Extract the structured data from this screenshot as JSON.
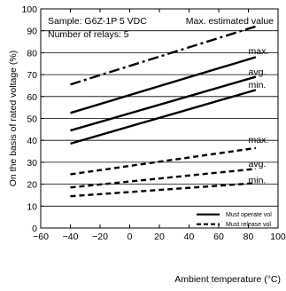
{
  "chart_data": {
    "type": "line",
    "xlabel": "Ambient temperature (°C)",
    "ylabel": "On the basis of rated voltage (%)",
    "xlim": [
      -60,
      100
    ],
    "ylim": [
      0,
      100
    ],
    "x_ticks": [
      -60,
      -40,
      -20,
      0,
      20,
      40,
      60,
      80,
      100
    ],
    "y_ticks": [
      0,
      10,
      20,
      30,
      40,
      50,
      60,
      70,
      80,
      90,
      100
    ],
    "x_tick_labels": [
      "−60",
      "−40",
      "−20",
      "0",
      "20",
      "40",
      "60",
      "80",
      "100"
    ],
    "y_tick_labels": [
      "0",
      "10",
      "20",
      "30",
      "40",
      "50",
      "60",
      "70",
      "80",
      "90",
      "100"
    ],
    "grid_major_y": [
      10,
      20,
      30,
      40,
      50,
      60,
      70,
      80,
      90
    ],
    "annotations": {
      "sample": "Sample: G6Z-1P  5 VDC",
      "relays": "Number of relays: 5",
      "max_estimated": "Max. estimated value"
    },
    "series": [
      {
        "name": "",
        "role": "max-estimated",
        "style": "dash-dot",
        "x": [
          -40,
          85
        ],
        "values": [
          65.5,
          92
        ]
      },
      {
        "name": "",
        "role": "operate-max",
        "style": "solid",
        "x": [
          -40,
          85
        ],
        "values": [
          52.5,
          78
        ]
      },
      {
        "name": "",
        "role": "operate-avg",
        "style": "solid",
        "x": [
          -40,
          85
        ],
        "values": [
          44.5,
          69
        ]
      },
      {
        "name": "",
        "role": "operate-min",
        "style": "solid",
        "x": [
          -40,
          85
        ],
        "values": [
          38.5,
          63
        ]
      },
      {
        "name": "",
        "role": "release-max",
        "style": "dashed",
        "x": [
          -40,
          85
        ],
        "values": [
          24.5,
          36.5
        ]
      },
      {
        "name": "",
        "role": "release-avg",
        "style": "dashed",
        "x": [
          -40,
          85
        ],
        "values": [
          18.5,
          27
        ]
      },
      {
        "name": "",
        "role": "release-min",
        "style": "dashed",
        "x": [
          -40,
          85
        ],
        "values": [
          14.5,
          20.5
        ]
      }
    ],
    "series_labels": [
      {
        "text": "max.",
        "x": 80,
        "y": 81
      },
      {
        "text": "avg.",
        "x": 80,
        "y": 71.5
      },
      {
        "text": "min.",
        "x": 80,
        "y": 65.5
      },
      {
        "text": "max.",
        "x": 80,
        "y": 40.5
      },
      {
        "text": "avg.",
        "x": 80,
        "y": 29.5
      },
      {
        "text": "min.",
        "x": 80,
        "y": 22
      }
    ],
    "legend": {
      "placement": "bottom-right",
      "entries": [
        {
          "label": "Must operate vol",
          "style": "solid"
        },
        {
          "label": "Must release vol",
          "style": "dashed"
        }
      ]
    }
  }
}
